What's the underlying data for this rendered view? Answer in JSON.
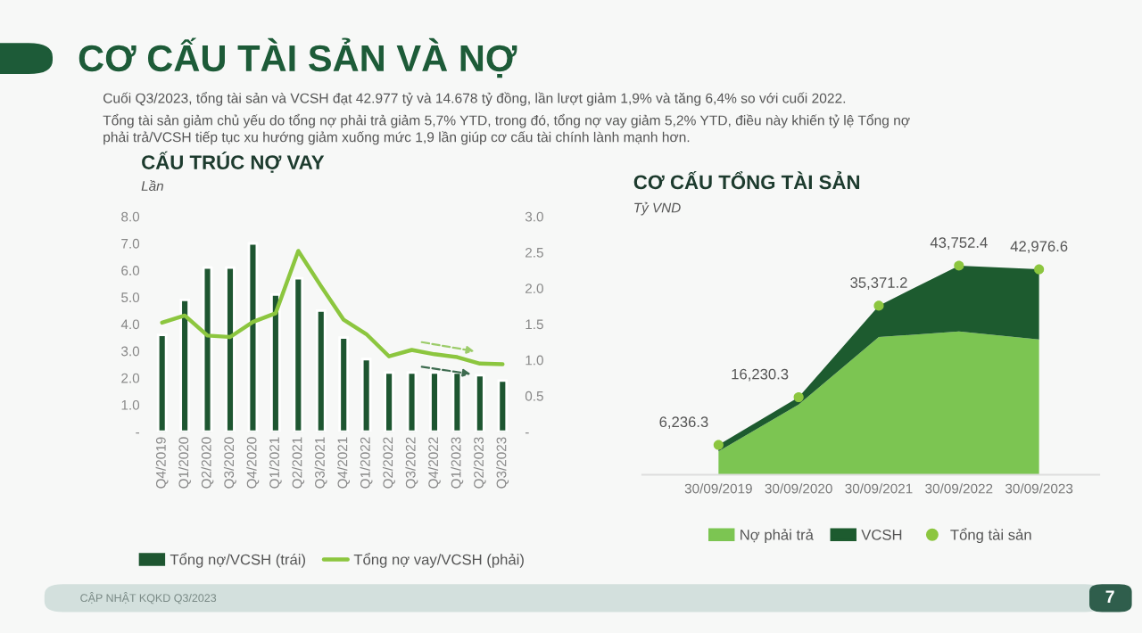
{
  "chart_data": [
    {
      "type": "other",
      "title": "CƠ CẤU TÀI SẢN VÀ NỢ",
      "color": "#1d5b38",
      "annotations": [
        "Cuối Q3/2023, tổng tài sản và VCSH đạt 42.977 tỷ và 14.678 tỷ đồng, lần lượt giảm 1,9% và tăng 6,4% so với cuối 2022.",
        "Tổng tài sản giảm chủ yếu do tổng nợ phải trả giảm 5,7% YTD, trong đó, tổng nợ vay giảm 5,2% YTD, điều này khiến tỷ lệ Tổng nợ\nphải trả/VCSH tiếp tục xu hướng giảm xuống mức 1,9 lần giúp cơ cấu tài chính lành mạnh hơn.",
        "CẬP NHẬT KQKD Q3/2023",
        "7"
      ]
    },
    {
      "type": "bar",
      "title": "CẤU TRÚC NỢ VAY",
      "ylabel": "Lần",
      "categories": [
        "Q4/2019",
        "Q1/2020",
        "Q2/2020",
        "Q3/2020",
        "Q4/2020",
        "Q1/2021",
        "Q2/2021",
        "Q3/2021",
        "Q4/2021",
        "Q1/2022",
        "Q2/2022",
        "Q3/2022",
        "Q4/2022",
        "Q1/2023",
        "Q2/2023",
        "Q3/2023"
      ],
      "series": [
        {
          "name": "Tổng nợ/VCSH (trái)",
          "type": "bar",
          "color": "#1e5631",
          "values": [
            3.6,
            4.9,
            6.1,
            6.1,
            7.0,
            5.1,
            5.7,
            4.5,
            3.5,
            2.7,
            2.2,
            2.2,
            2.2,
            2.2,
            2.1,
            1.9
          ]
        },
        {
          "name": "Tổng nợ vay/VCSH (phải)",
          "type": "line",
          "axis": "y2",
          "color": "#8cc63f",
          "values": [
            1.52,
            1.62,
            1.34,
            1.32,
            1.53,
            1.65,
            2.52,
            2.03,
            1.56,
            1.36,
            1.05,
            1.14,
            1.08,
            1.04,
            0.95,
            0.94
          ]
        }
      ],
      "ylim": [
        0,
        8
      ],
      "yticks": [
        {
          "value": 0,
          "label": "-"
        },
        {
          "value": 1,
          "label": "1.0"
        },
        {
          "value": 2,
          "label": "2.0"
        },
        {
          "value": 3,
          "label": "3.0"
        },
        {
          "value": 4,
          "label": "4.0"
        },
        {
          "value": 5,
          "label": "5.0"
        },
        {
          "value": 6,
          "label": "6.0"
        },
        {
          "value": 7,
          "label": "7.0"
        },
        {
          "value": 8,
          "label": "8.0"
        }
      ],
      "y2lim": [
        0,
        3
      ],
      "y2ticks": [
        {
          "value": 0,
          "label": "-"
        },
        0.5,
        {
          "value": 1,
          "label": "1.0"
        },
        1.5,
        {
          "value": 2,
          "label": "2.0"
        },
        2.5,
        {
          "value": 3,
          "label": "3.0"
        }
      ],
      "grid": false,
      "legend": "bottom"
    },
    {
      "type": "area",
      "title": "CƠ CẤU TỔNG TÀI SẢN",
      "ylabel": "Tỷ VND",
      "stacked": true,
      "categories": [
        "30/09/2019",
        "30/09/2020",
        "30/09/2021",
        "30/09/2022",
        "30/09/2023"
      ],
      "series": [
        {
          "name": "Nợ phải trả",
          "type": "area",
          "color": "#7cc552",
          "values": [
            4900,
            14700,
            28800,
            30000,
            28300
          ]
        },
        {
          "name": "VCSH",
          "type": "area",
          "color": "#1d5b2f",
          "values": [
            1336.3,
            1530.3,
            6571.2,
            13752.4,
            14676.6
          ]
        },
        {
          "name": "Tổng tài sản",
          "type": "scatter",
          "color": "#8cc63f",
          "values": [
            6236.3,
            16230.3,
            35371.2,
            43752.4,
            42976.6
          ],
          "value_labels": [
            "6,236.3",
            "16,230.3",
            "35,371.2",
            "43,752.4",
            "42,976.6"
          ]
        }
      ],
      "tick_labels": "x",
      "grid": false,
      "legend": "bottom"
    }
  ]
}
